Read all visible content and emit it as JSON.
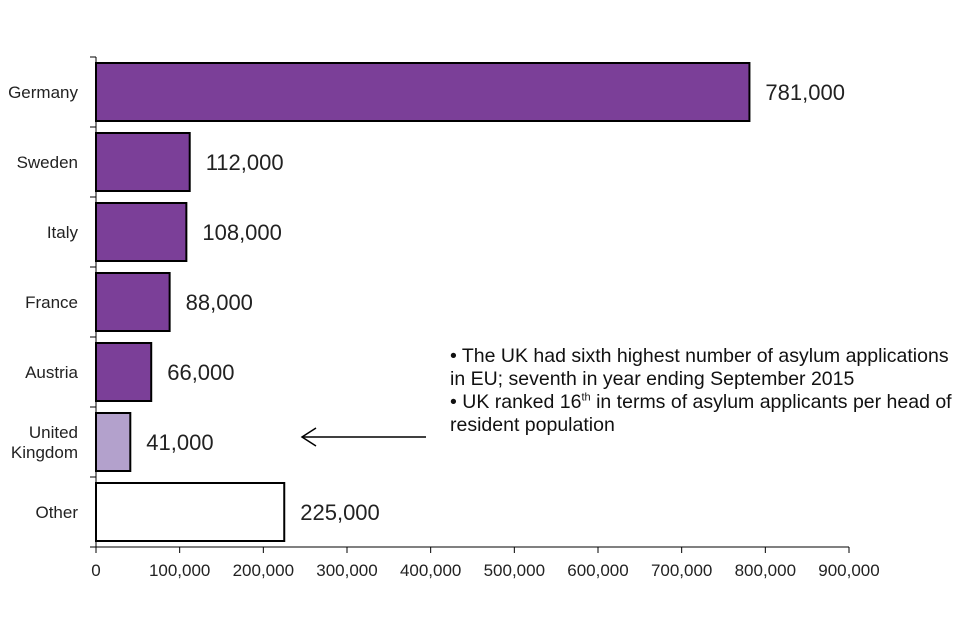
{
  "chart_data": {
    "type": "bar",
    "orientation": "horizontal",
    "categories": [
      "Germany",
      "Sweden",
      "Italy",
      "France",
      "Austria",
      "United Kingdom",
      "Other"
    ],
    "category_lines": [
      [
        "Germany"
      ],
      [
        "Sweden"
      ],
      [
        "Italy"
      ],
      [
        "France"
      ],
      [
        "Austria"
      ],
      [
        "United",
        "Kingdom"
      ],
      [
        "Other"
      ]
    ],
    "values": [
      781000,
      112000,
      108000,
      88000,
      66000,
      41000,
      225000
    ],
    "value_labels": [
      "781,000",
      "112,000",
      "108,000",
      "88,000",
      "66,000",
      "41,000",
      "225,000"
    ],
    "bar_colors": [
      "#7b3f98",
      "#7b3f98",
      "#7b3f98",
      "#7b3f98",
      "#7b3f98",
      "#b3a1cc",
      "#ffffff"
    ],
    "xlim": [
      0,
      900000
    ],
    "xticks": [
      0,
      100000,
      200000,
      300000,
      400000,
      500000,
      600000,
      700000,
      800000,
      900000
    ],
    "xtick_labels": [
      "0",
      "100,000",
      "200,000",
      "300,000",
      "400,000",
      "500,000",
      "600,000",
      "700,000",
      "800,000",
      "900,000"
    ],
    "title": "",
    "xlabel": "",
    "ylabel": "",
    "grid": false,
    "legend": "none"
  },
  "annotation": {
    "bullet1": "• The UK had sixth highest number of asylum applications in EU; seventh in year ending September 2015",
    "bullet2_before": "• UK ranked 16",
    "bullet2_sup": "th",
    "bullet2_after": " in terms of asylum applicants per head of resident population",
    "arrow": "pointing to United Kingdom bar"
  }
}
